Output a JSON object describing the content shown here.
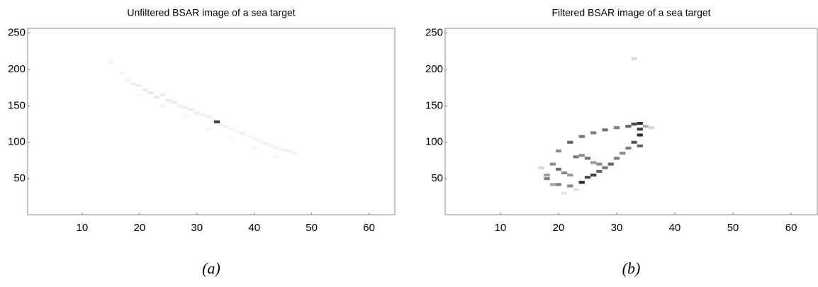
{
  "chart_data": [
    {
      "type": "heatmap",
      "title": "Unfiltered BSAR image of a sea target",
      "caption": "(a)",
      "xlim": [
        0.5,
        64.5
      ],
      "ylim": [
        0.5,
        256.5
      ],
      "xticks": [
        10,
        20,
        30,
        40,
        50,
        60
      ],
      "yticks": [
        50,
        100,
        150,
        200,
        250
      ],
      "cells": {
        "x": [
          15,
          17,
          18,
          19,
          20,
          21,
          22,
          23,
          24,
          25,
          26,
          27,
          28,
          29,
          30,
          31,
          32,
          33,
          34,
          35,
          36,
          37,
          38,
          39,
          40,
          41,
          42,
          43,
          44,
          45,
          46,
          47,
          20,
          24,
          28,
          32,
          36,
          40,
          44,
          33.5
        ],
        "y": [
          210,
          195,
          185,
          180,
          178,
          172,
          168,
          162,
          165,
          158,
          155,
          150,
          148,
          145,
          140,
          138,
          135,
          130,
          125,
          122,
          118,
          115,
          112,
          108,
          105,
          102,
          98,
          95,
          92,
          90,
          88,
          85,
          165,
          150,
          135,
          118,
          105,
          92,
          80,
          128
        ],
        "values": [
          0.05,
          0.04,
          0.06,
          0.05,
          0.07,
          0.08,
          0.09,
          0.1,
          0.08,
          0.07,
          0.08,
          0.06,
          0.07,
          0.08,
          0.06,
          0.05,
          0.07,
          0.06,
          0.05,
          0.06,
          0.05,
          0.04,
          0.05,
          0.04,
          0.05,
          0.04,
          0.05,
          0.04,
          0.05,
          0.06,
          0.05,
          0.06,
          0.04,
          0.05,
          0.04,
          0.04,
          0.03,
          0.04,
          0.04,
          0.75
        ]
      }
    },
    {
      "type": "heatmap",
      "title": "Filtered BSAR image of a sea target",
      "caption": "(b)",
      "xlim": [
        0.5,
        64.5
      ],
      "ylim": [
        0.5,
        256.5
      ],
      "xticks": [
        10,
        20,
        30,
        40,
        50,
        60
      ],
      "yticks": [
        50,
        100,
        150,
        200,
        250
      ],
      "cells": {
        "x": [
          20,
          22,
          24,
          26,
          28,
          30,
          32,
          33,
          34,
          20,
          22,
          24,
          25,
          26,
          27,
          28,
          29,
          30,
          31,
          32,
          33,
          34,
          19,
          20,
          21,
          22,
          23,
          24,
          25,
          26,
          27,
          18,
          18,
          19,
          34,
          34,
          33,
          35,
          36,
          17,
          21,
          23
        ],
        "y": [
          88,
          100,
          108,
          113,
          117,
          120,
          122,
          125,
          126,
          42,
          40,
          45,
          52,
          55,
          60,
          65,
          70,
          78,
          85,
          92,
          100,
          110,
          70,
          63,
          58,
          55,
          80,
          82,
          78,
          72,
          70,
          55,
          50,
          42,
          95,
          118,
          215,
          122,
          120,
          65,
          30,
          35
        ],
        "values": [
          0.45,
          0.6,
          0.55,
          0.5,
          0.55,
          0.5,
          0.6,
          0.7,
          0.8,
          0.5,
          0.45,
          0.85,
          0.7,
          0.75,
          0.6,
          0.55,
          0.6,
          0.5,
          0.45,
          0.5,
          0.65,
          0.8,
          0.45,
          0.55,
          0.5,
          0.4,
          0.5,
          0.45,
          0.55,
          0.4,
          0.45,
          0.4,
          0.5,
          0.35,
          0.6,
          0.75,
          0.15,
          0.3,
          0.15,
          0.15,
          0.1,
          0.12
        ]
      }
    }
  ]
}
